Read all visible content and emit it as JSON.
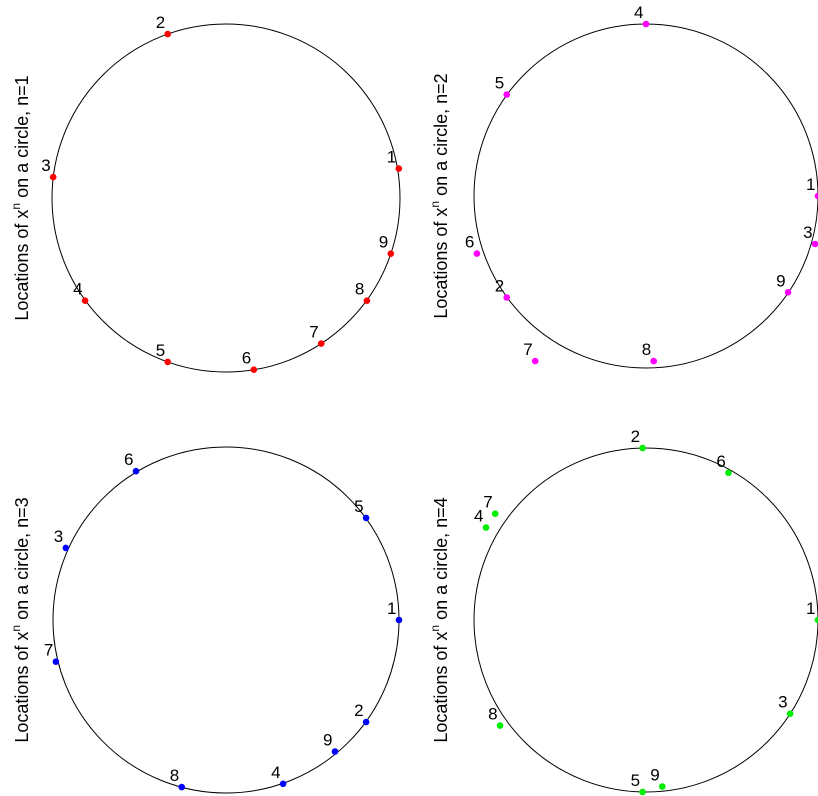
{
  "chart_data": [
    {
      "type": "scatter",
      "ylabel": {
        "prefix": "Locations of x",
        "sup": "n",
        "suffix": " on a circle, n=1"
      },
      "color": "#ff0000",
      "xlim": [
        -1,
        1
      ],
      "ylim": [
        -1,
        1
      ],
      "grid": false,
      "points": [
        {
          "label": "1",
          "x": 0.993,
          "y": 0.169
        },
        {
          "label": "2",
          "x": -0.335,
          "y": 0.942
        },
        {
          "label": "3",
          "x": -0.993,
          "y": 0.12
        },
        {
          "label": "4",
          "x": -0.81,
          "y": -0.59
        },
        {
          "label": "5",
          "x": -0.335,
          "y": -0.942
        },
        {
          "label": "6",
          "x": 0.16,
          "y": -0.987
        },
        {
          "label": "7",
          "x": 0.547,
          "y": -0.837
        },
        {
          "label": "8",
          "x": 0.81,
          "y": -0.59
        },
        {
          "label": "9",
          "x": 0.947,
          "y": -0.32
        }
      ]
    },
    {
      "type": "scatter",
      "ylabel": {
        "prefix": "Locations of x",
        "sup": "n",
        "suffix": " on a circle, n=2"
      },
      "color": "#ff00ff",
      "xlim": [
        -1,
        1
      ],
      "ylim": [
        -1,
        1
      ],
      "grid": false,
      "points": [
        {
          "label": "1",
          "x": 1.0,
          "y": 0.0
        },
        {
          "label": "2",
          "x": -0.81,
          "y": -0.59
        },
        {
          "label": "3",
          "x": 0.983,
          "y": -0.279
        },
        {
          "label": "4",
          "x": 0.0,
          "y": 1.0
        },
        {
          "label": "5",
          "x": -0.81,
          "y": 0.59
        },
        {
          "label": "6",
          "x": -0.983,
          "y": -0.335
        },
        {
          "label": "7",
          "x": -0.644,
          "y": -0.96
        },
        {
          "label": "8",
          "x": 0.045,
          "y": -0.96
        },
        {
          "label": "9",
          "x": 0.826,
          "y": -0.56
        }
      ]
    },
    {
      "type": "scatter",
      "ylabel": {
        "prefix": "Locations of x",
        "sup": "n",
        "suffix": " on a circle, n=3"
      },
      "color": "#0000ff",
      "xlim": [
        -1,
        1
      ],
      "ylim": [
        -1,
        1
      ],
      "grid": false,
      "points": [
        {
          "label": "1",
          "x": 1.0,
          "y": 0.0
        },
        {
          "label": "2",
          "x": 0.81,
          "y": -0.59
        },
        {
          "label": "3",
          "x": -0.926,
          "y": 0.417
        },
        {
          "label": "4",
          "x": 0.33,
          "y": -0.947
        },
        {
          "label": "5",
          "x": 0.81,
          "y": 0.59
        },
        {
          "label": "6",
          "x": -0.52,
          "y": 0.86
        },
        {
          "label": "7",
          "x": -0.983,
          "y": -0.241
        },
        {
          "label": "8",
          "x": -0.256,
          "y": -0.966
        },
        {
          "label": "9",
          "x": 0.63,
          "y": -0.76
        }
      ]
    },
    {
      "type": "scatter",
      "ylabel": {
        "prefix": "Locations of x",
        "sup": "n",
        "suffix": " on a circle, n=4"
      },
      "color": "#00ee00",
      "xlim": [
        -1,
        1
      ],
      "ylim": [
        -1,
        1
      ],
      "grid": false,
      "points": [
        {
          "label": "1",
          "x": 1.0,
          "y": 0.0
        },
        {
          "label": "2",
          "x": -0.02,
          "y": 1.0
        },
        {
          "label": "3",
          "x": 0.838,
          "y": -0.545
        },
        {
          "label": "4",
          "x": -0.93,
          "y": 0.538
        },
        {
          "label": "5",
          "x": -0.02,
          "y": -1.0
        },
        {
          "label": "6",
          "x": 0.479,
          "y": 0.856
        },
        {
          "label": "7",
          "x": -0.877,
          "y": 0.618
        },
        {
          "label": "8",
          "x": -0.848,
          "y": -0.614
        },
        {
          "label": "9",
          "x": 0.095,
          "y": -0.968
        }
      ]
    }
  ]
}
